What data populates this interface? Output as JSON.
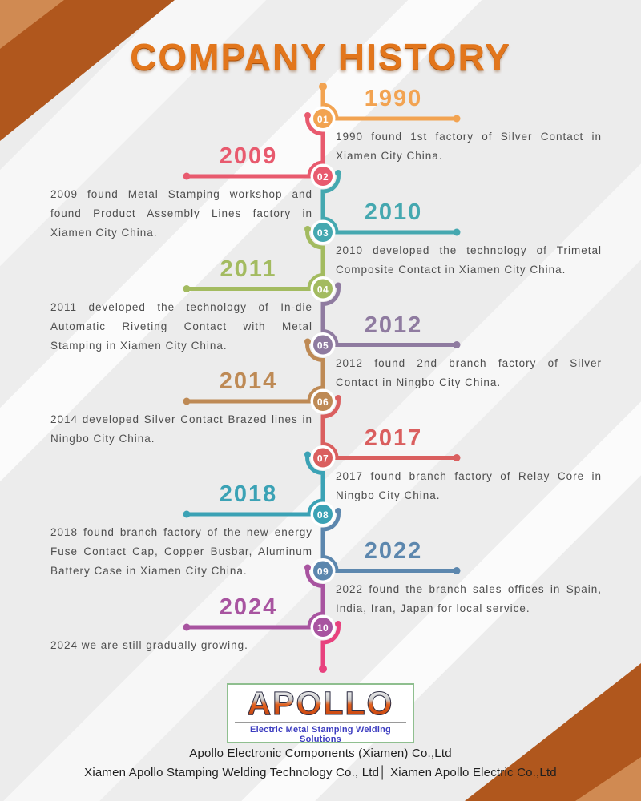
{
  "title": "COMPANY HISTORY",
  "timeline": {
    "items": [
      {
        "num": "01",
        "year": "1990",
        "side": "right",
        "color": "#F2A351",
        "desc": "1990 found 1st factory of Silver Contact in Xiamen City China."
      },
      {
        "num": "02",
        "year": "2009",
        "side": "left",
        "color": "#E85A6E",
        "desc": "2009 found Metal Stamping workshop and found Product Assembly Lines factory in Xiamen City China."
      },
      {
        "num": "03",
        "year": "2010",
        "side": "right",
        "color": "#45A8B0",
        "desc": "2010 developed the technology of Trimetal Composite Contact in Xiamen City China."
      },
      {
        "num": "04",
        "year": "2011",
        "side": "left",
        "color": "#A3BB60",
        "desc": "2011 developed the technology of In-die Automatic Riveting Contact with Metal Stamping in Xiamen City China."
      },
      {
        "num": "05",
        "year": "2012",
        "side": "right",
        "color": "#8F7BA0",
        "desc": "2012 found 2nd branch factory of Silver Contact in Ningbo City China."
      },
      {
        "num": "06",
        "year": "2014",
        "side": "left",
        "color": "#BE8A55",
        "desc": "2014 developed Silver Contact Brazed lines in Ningbo City China."
      },
      {
        "num": "07",
        "year": "2017",
        "side": "right",
        "color": "#DA5F5F",
        "desc": "2017 found branch factory of Relay Core in Ningbo City China."
      },
      {
        "num": "08",
        "year": "2018",
        "side": "left",
        "color": "#3BA2B5",
        "desc": "2018 found branch factory of the new energy Fuse Contact Cap, Copper Busbar, Aluminum Battery Case in Xiamen City China."
      },
      {
        "num": "09",
        "year": "2022",
        "side": "right",
        "color": "#5C87AE",
        "desc": "2022 found the branch sales offices in Spain, India, Iran, Japan for local service."
      },
      {
        "num": "10",
        "year": "2024",
        "side": "left",
        "color": "#A854A0",
        "desc": "2024 we are still gradually growing."
      }
    ],
    "tail_color": "#E8417E"
  },
  "logo": {
    "name": "APOLLO",
    "tagline": "Electric Metal Stamping Welding Solutions"
  },
  "footer": {
    "line1": "Apollo Electronic Components (Xiamen) Co.,Ltd",
    "line2": "Xiamen Apollo Stamping Welding Technology Co., Ltd│ Xiamen Apollo Electric Co.,Ltd"
  },
  "colors": {
    "title": "#E2761C",
    "corner_dark": "#B0571D",
    "corner_light": "#D08A52",
    "description_text": "#4E4E4E"
  }
}
